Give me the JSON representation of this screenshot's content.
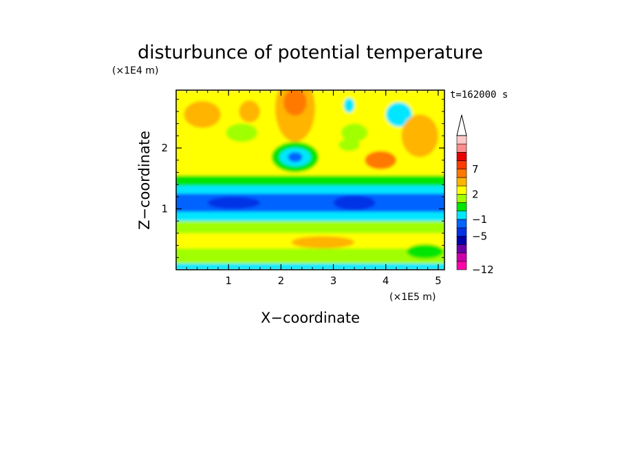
{
  "chart_data": {
    "type": "heatmap",
    "title": "disturbunce of potential temperature",
    "time_label": "t=162000 s",
    "xlabel": "X−coordinate",
    "ylabel": "Z−coordinate",
    "x_unit": "(×1E5 m)",
    "y_unit": "(×1E4 m)",
    "xlim": [
      0,
      5.12
    ],
    "ylim": [
      0,
      2.95
    ],
    "x_ticks": [
      1,
      2,
      3,
      4,
      5
    ],
    "y_ticks": [
      1,
      2
    ],
    "x_tick_labels": [
      "1",
      "2",
      "3",
      "4",
      "5"
    ],
    "y_tick_labels": [
      "1",
      "2"
    ],
    "colorbar": {
      "levels": [
        -12,
        -11,
        -9,
        -7,
        -5,
        -3,
        -1,
        0,
        1,
        2,
        3,
        5,
        7,
        9,
        11
      ],
      "labeled_levels": [
        -12,
        -5,
        -1,
        2,
        7
      ],
      "labels": [
        "−12",
        "−5",
        "−1",
        "2",
        "7"
      ],
      "colors": [
        "#ff00aa",
        "#cc00aa",
        "#6a00aa",
        "#0000aa",
        "#0032e6",
        "#0064ff",
        "#00e6ff",
        "#00e600",
        "#a0ff00",
        "#ffff00",
        "#ffb400",
        "#ff7800",
        "#ff3c00",
        "#e60000",
        "#ff8c8c",
        "#ffc8c8"
      ],
      "extend_max": true
    },
    "bands": [
      {
        "z_min": 0.0,
        "z_max": 0.1,
        "value": -2
      },
      {
        "z_min": 0.1,
        "z_max": 0.35,
        "value": 0
      },
      {
        "z_min": 0.35,
        "z_max": 0.6,
        "value": 1.5
      },
      {
        "z_min": 0.6,
        "z_max": 0.8,
        "value": 0
      },
      {
        "z_min": 0.8,
        "z_max": 0.95,
        "value": -2
      },
      {
        "z_min": 0.95,
        "z_max": 1.25,
        "value": -4
      },
      {
        "z_min": 1.25,
        "z_max": 1.38,
        "value": -2
      },
      {
        "z_min": 1.38,
        "z_max": 1.55,
        "value": -0.5
      },
      {
        "z_min": 1.55,
        "z_max": 2.95,
        "value": 1.5
      }
    ],
    "features": [
      {
        "x": 2.27,
        "z": 2.65,
        "rx": 0.38,
        "rz": 0.55,
        "value": 2.5
      },
      {
        "x": 2.27,
        "z": 2.75,
        "rx": 0.22,
        "rz": 0.22,
        "value": 4
      },
      {
        "x": 2.27,
        "z": 1.85,
        "rx": 0.45,
        "rz": 0.25,
        "value": -0.5
      },
      {
        "x": 2.27,
        "z": 1.85,
        "rx": 0.3,
        "rz": 0.15,
        "value": -2
      },
      {
        "x": 2.27,
        "z": 1.85,
        "rx": 0.14,
        "rz": 0.08,
        "value": -4
      },
      {
        "x": 1.25,
        "z": 2.25,
        "rx": 0.3,
        "rz": 0.15,
        "value": 0
      },
      {
        "x": 3.4,
        "z": 2.25,
        "rx": 0.25,
        "rz": 0.15,
        "value": 0
      },
      {
        "x": 3.3,
        "z": 2.05,
        "rx": 0.2,
        "rz": 0.1,
        "value": 0
      },
      {
        "x": 3.3,
        "z": 2.7,
        "rx": 0.1,
        "rz": 0.12,
        "value": -2
      },
      {
        "x": 4.25,
        "z": 2.55,
        "rx": 0.25,
        "rz": 0.2,
        "value": -2
      },
      {
        "x": 3.9,
        "z": 1.8,
        "rx": 0.3,
        "rz": 0.15,
        "value": 3
      },
      {
        "x": 4.65,
        "z": 2.2,
        "rx": 0.35,
        "rz": 0.35,
        "value": 2.5
      },
      {
        "x": 0.5,
        "z": 2.55,
        "rx": 0.35,
        "rz": 0.22,
        "value": 2.5
      },
      {
        "x": 1.4,
        "z": 2.6,
        "rx": 0.2,
        "rz": 0.18,
        "value": 2.5
      },
      {
        "x": 1.1,
        "z": 1.1,
        "rx": 0.5,
        "rz": 0.1,
        "value": -5.5
      },
      {
        "x": 3.4,
        "z": 1.1,
        "rx": 0.4,
        "rz": 0.12,
        "value": -5.5
      },
      {
        "x": 2.8,
        "z": 0.45,
        "rx": 0.6,
        "rz": 0.1,
        "value": 2.5
      },
      {
        "x": 4.75,
        "z": 0.3,
        "rx": 0.35,
        "rz": 0.12,
        "value": -0.5
      }
    ]
  }
}
